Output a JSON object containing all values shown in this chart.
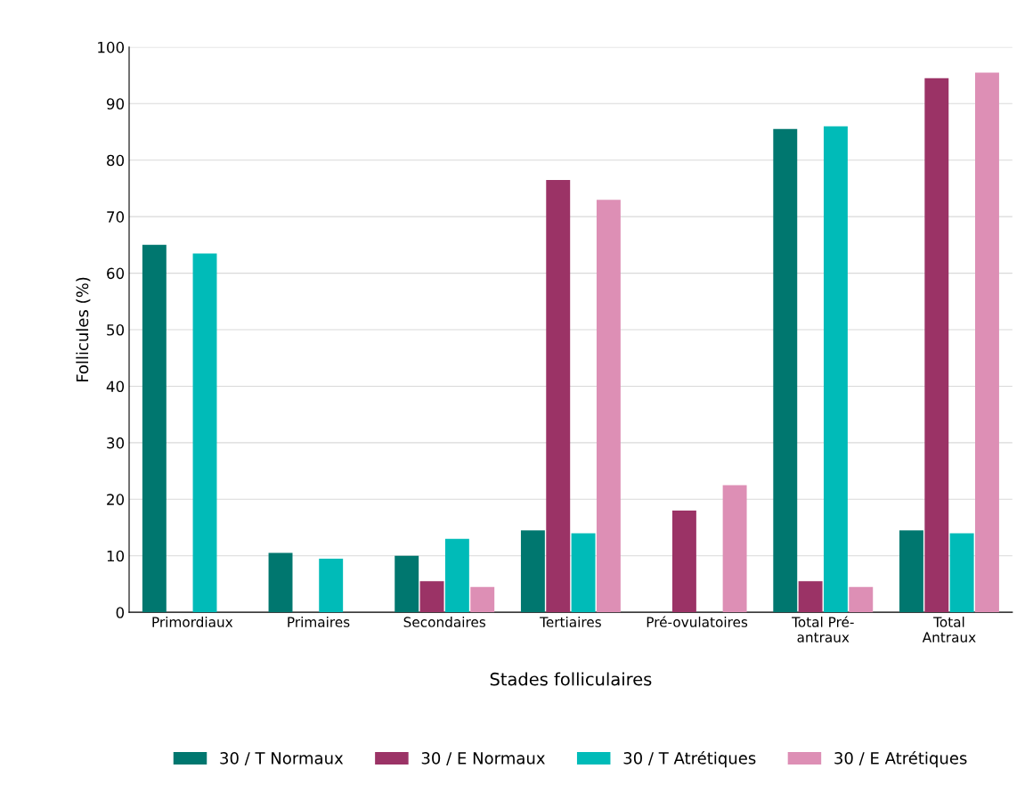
{
  "chart_data": {
    "type": "bar",
    "xlabel": "Stades folliculaires",
    "ylabel": "Follicules (%)",
    "categories": [
      "Primordiaux",
      "Primaires",
      "Secondaires",
      "Tertiaires",
      "Pré-ovulatoires",
      "Total Pré-\nantraux",
      "Total\nAntraux"
    ],
    "series": [
      {
        "name": "30 / T Normaux",
        "color": "#00776f",
        "values": [
          65,
          10.5,
          10,
          14.5,
          0,
          85.5,
          14.5
        ]
      },
      {
        "name": "30 / E Normaux",
        "color": "#9b3366",
        "values": [
          0,
          0,
          5.5,
          76.5,
          18,
          5.5,
          94.5
        ]
      },
      {
        "name": "30 / T Atrétiques",
        "color": "#00bbb8",
        "values": [
          63.5,
          9.5,
          13,
          14,
          0,
          86,
          14
        ]
      },
      {
        "name": "30 / E Atrétiques",
        "color": "#dd8fb5",
        "values": [
          0,
          0,
          4.5,
          73,
          22.5,
          4.5,
          95.5
        ]
      }
    ],
    "ylim": [
      0,
      100
    ],
    "yticks": [
      0,
      10,
      20,
      30,
      40,
      50,
      60,
      70,
      80,
      90,
      100
    ],
    "grid": "y",
    "legend": "bottom"
  }
}
